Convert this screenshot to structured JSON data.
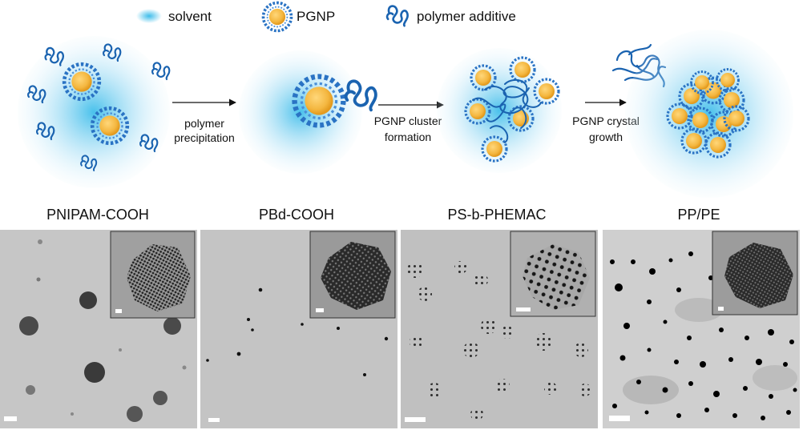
{
  "legend": {
    "solvent": "solvent",
    "pgnp": "PGNP",
    "polymer_additive": "polymer additive"
  },
  "steps": {
    "step1": [
      "polymer",
      "precipitation"
    ],
    "step2": [
      "PGNP cluster",
      "formation"
    ],
    "step3": [
      "PGNP crystal",
      "growth"
    ]
  },
  "panels": [
    {
      "title": "PNIPAM-COOH"
    },
    {
      "title": "PBd-COOH"
    },
    {
      "title": "PS-b-PHEMAC"
    },
    {
      "title": "PP/PE"
    }
  ],
  "colors": {
    "solvent": "#29b6e8",
    "gold_core": "#f4b740",
    "polymer": "#1a63b0",
    "shell_dash": "#2a73c4"
  },
  "icons": [
    "solvent-blob-icon",
    "pgnp-particle-icon",
    "polymer-coil-icon",
    "arrow-right-icon"
  ]
}
